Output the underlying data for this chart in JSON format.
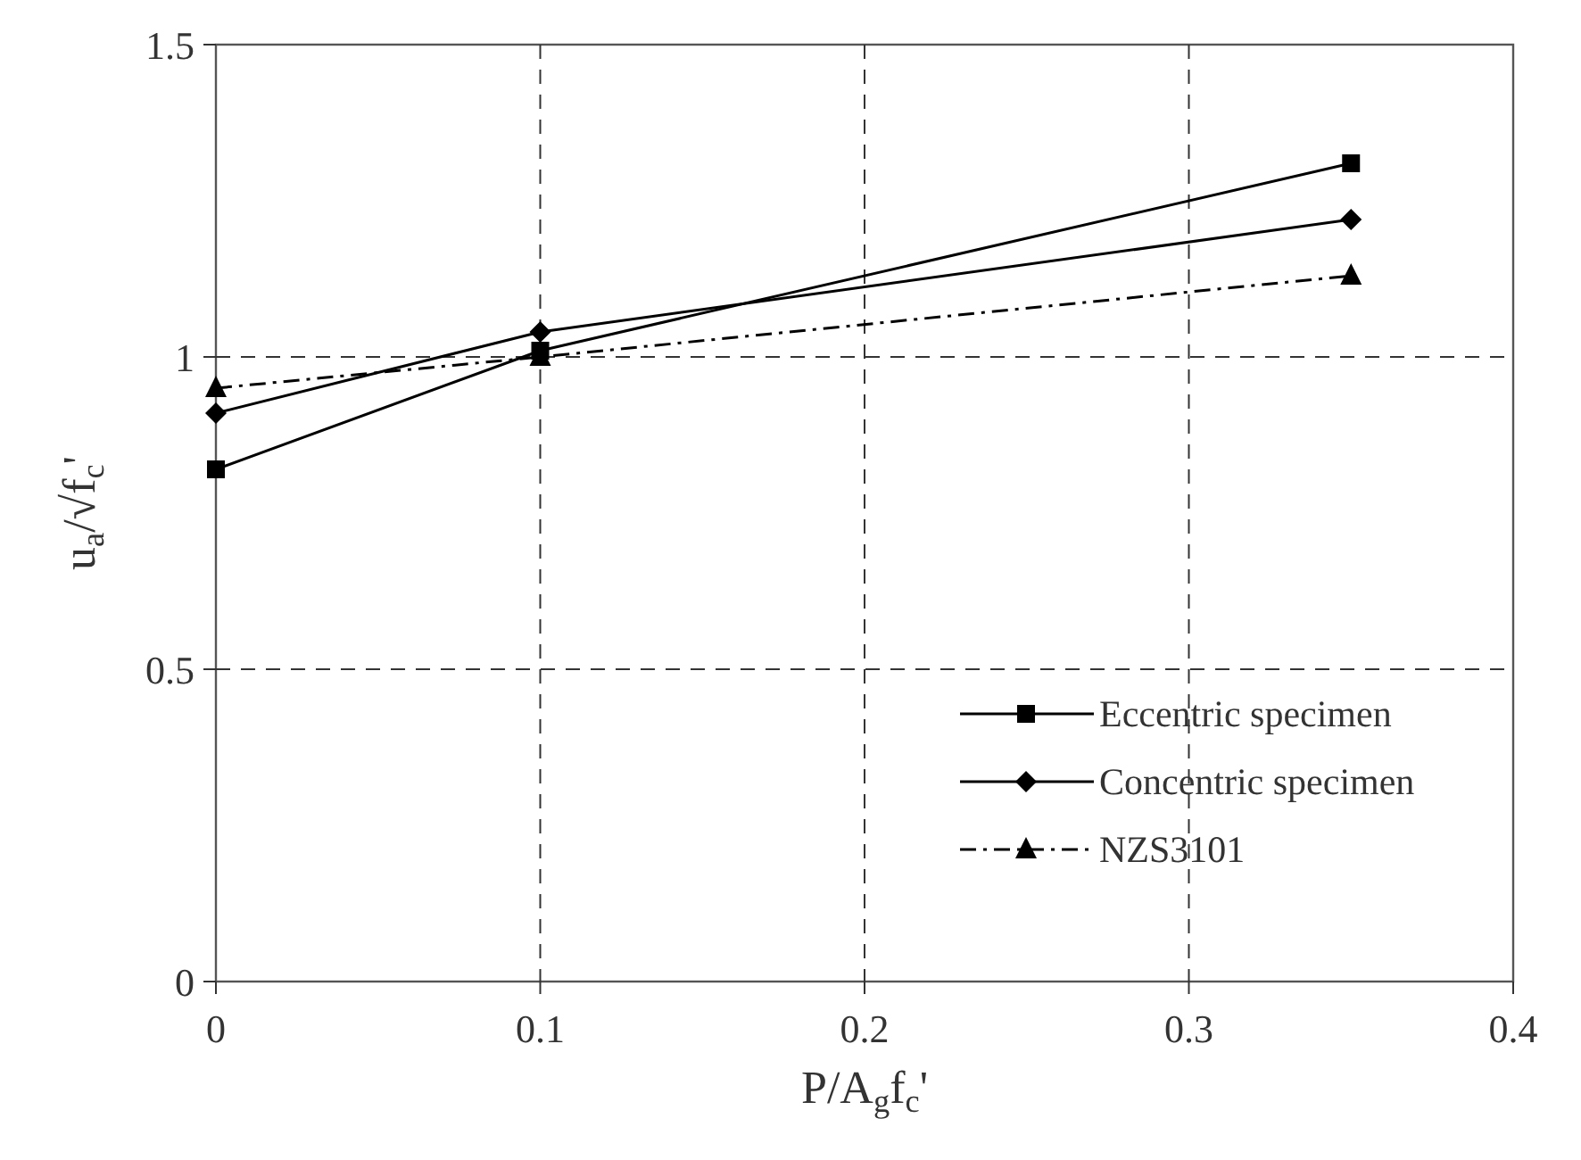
{
  "chart_data": {
    "type": "line",
    "xlabel": "P/A$_{g}$f$_{c}$'",
    "ylabel": "u$_{a}$/√f$_{c}$'",
    "xlim": [
      0,
      0.4
    ],
    "xticks": [
      0,
      0.1,
      0.2,
      0.3,
      0.4
    ],
    "ylim": [
      0,
      1.5
    ],
    "yticks": [
      0,
      0.5,
      1,
      1.5
    ],
    "grid": true,
    "legend": "bottom right",
    "series": [
      {
        "name": "Eccentric specimen",
        "color": "#000000",
        "x": [
          0,
          0.1,
          0.35
        ],
        "values": [
          0.82,
          1.01,
          1.31
        ],
        "marker": "square",
        "line_style": "solid"
      },
      {
        "name": "Concentric specimen",
        "color": "#000000",
        "x": [
          0,
          0.1,
          0.35
        ],
        "values": [
          0.91,
          1.04,
          1.22
        ],
        "marker": "diamond",
        "line_style": "solid"
      },
      {
        "name": "NZS3101",
        "color": "#000000",
        "x": [
          0,
          0.1,
          0.35
        ],
        "values": [
          0.95,
          1.0,
          1.13
        ],
        "marker": "triangle",
        "line_style": "dashdot"
      }
    ]
  }
}
